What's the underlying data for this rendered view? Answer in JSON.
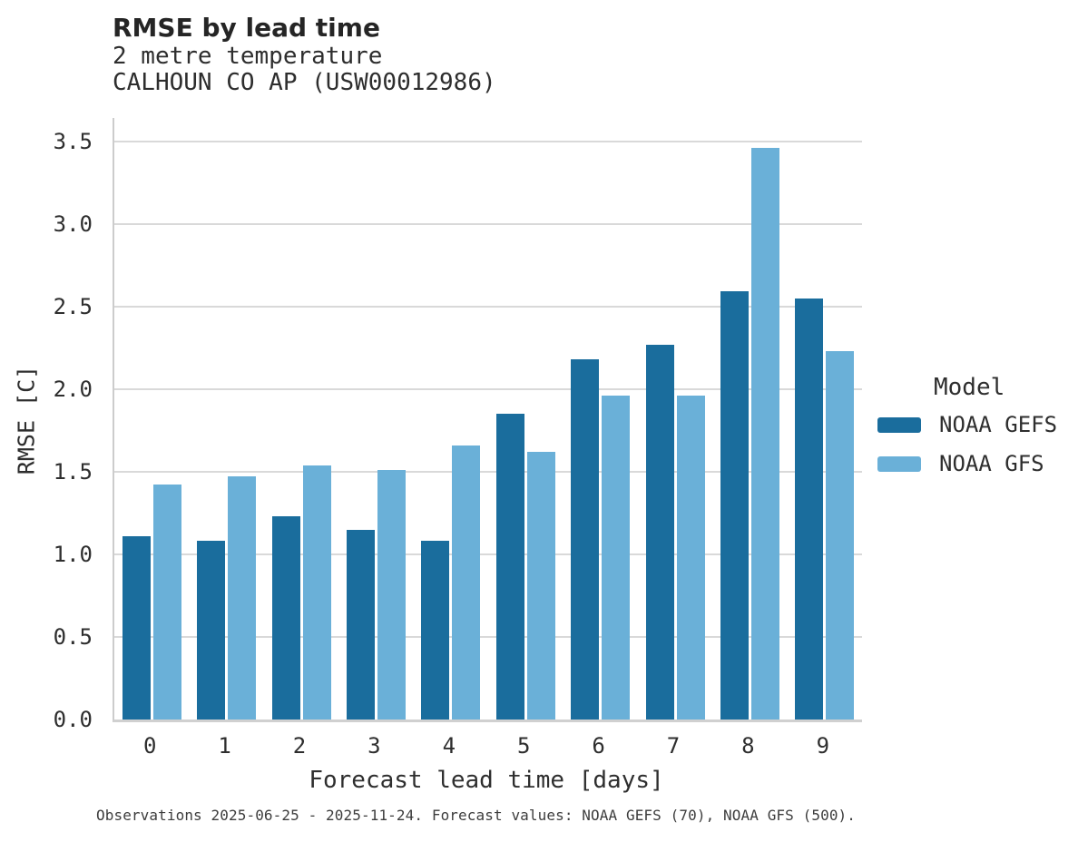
{
  "header": {
    "title": "RMSE by lead time",
    "subtitle_line1": "2 metre temperature",
    "subtitle_line2": "CALHOUN CO AP (USW00012986)"
  },
  "legend": {
    "title": "Model"
  },
  "footer": {
    "caption": "Observations 2025-06-25 - 2025-11-24. Forecast values: NOAA GEFS (70), NOAA GFS (500)."
  },
  "colors": {
    "gefs_bar": "#1A6D9D",
    "gfs_bar": "#6AB0D8",
    "gridline": "#D9D9D9",
    "spine": "#CCCCCC",
    "text": "#2E2E2E",
    "footer_text": "#3D3D3D"
  },
  "chart_data": {
    "type": "bar",
    "title": "RMSE by lead time",
    "subtitle": [
      "2 metre temperature",
      "CALHOUN CO AP (USW00012986)"
    ],
    "categories": [
      "0",
      "1",
      "2",
      "3",
      "4",
      "5",
      "6",
      "7",
      "8",
      "9"
    ],
    "series": [
      {
        "name": "NOAA GEFS",
        "color": "#1A6D9D",
        "values": [
          1.11,
          1.08,
          1.23,
          1.15,
          1.08,
          1.85,
          2.18,
          2.27,
          2.59,
          2.55
        ]
      },
      {
        "name": "NOAA GFS",
        "color": "#6AB0D8",
        "values": [
          1.42,
          1.47,
          1.54,
          1.51,
          1.66,
          1.62,
          1.96,
          1.96,
          3.46,
          2.23
        ]
      }
    ],
    "xlabel": "Forecast lead time [days]",
    "ylabel": "RMSE [C]",
    "ylim": [
      0,
      3.64
    ],
    "yticks": [
      0.0,
      0.5,
      1.0,
      1.5,
      2.0,
      2.5,
      3.0,
      3.5
    ],
    "grid": "horizontal",
    "legend_title": "Model",
    "legend_position": "right",
    "caption": "Observations 2025-06-25 - 2025-11-24. Forecast values: NOAA GEFS (70), NOAA GFS (500)."
  }
}
